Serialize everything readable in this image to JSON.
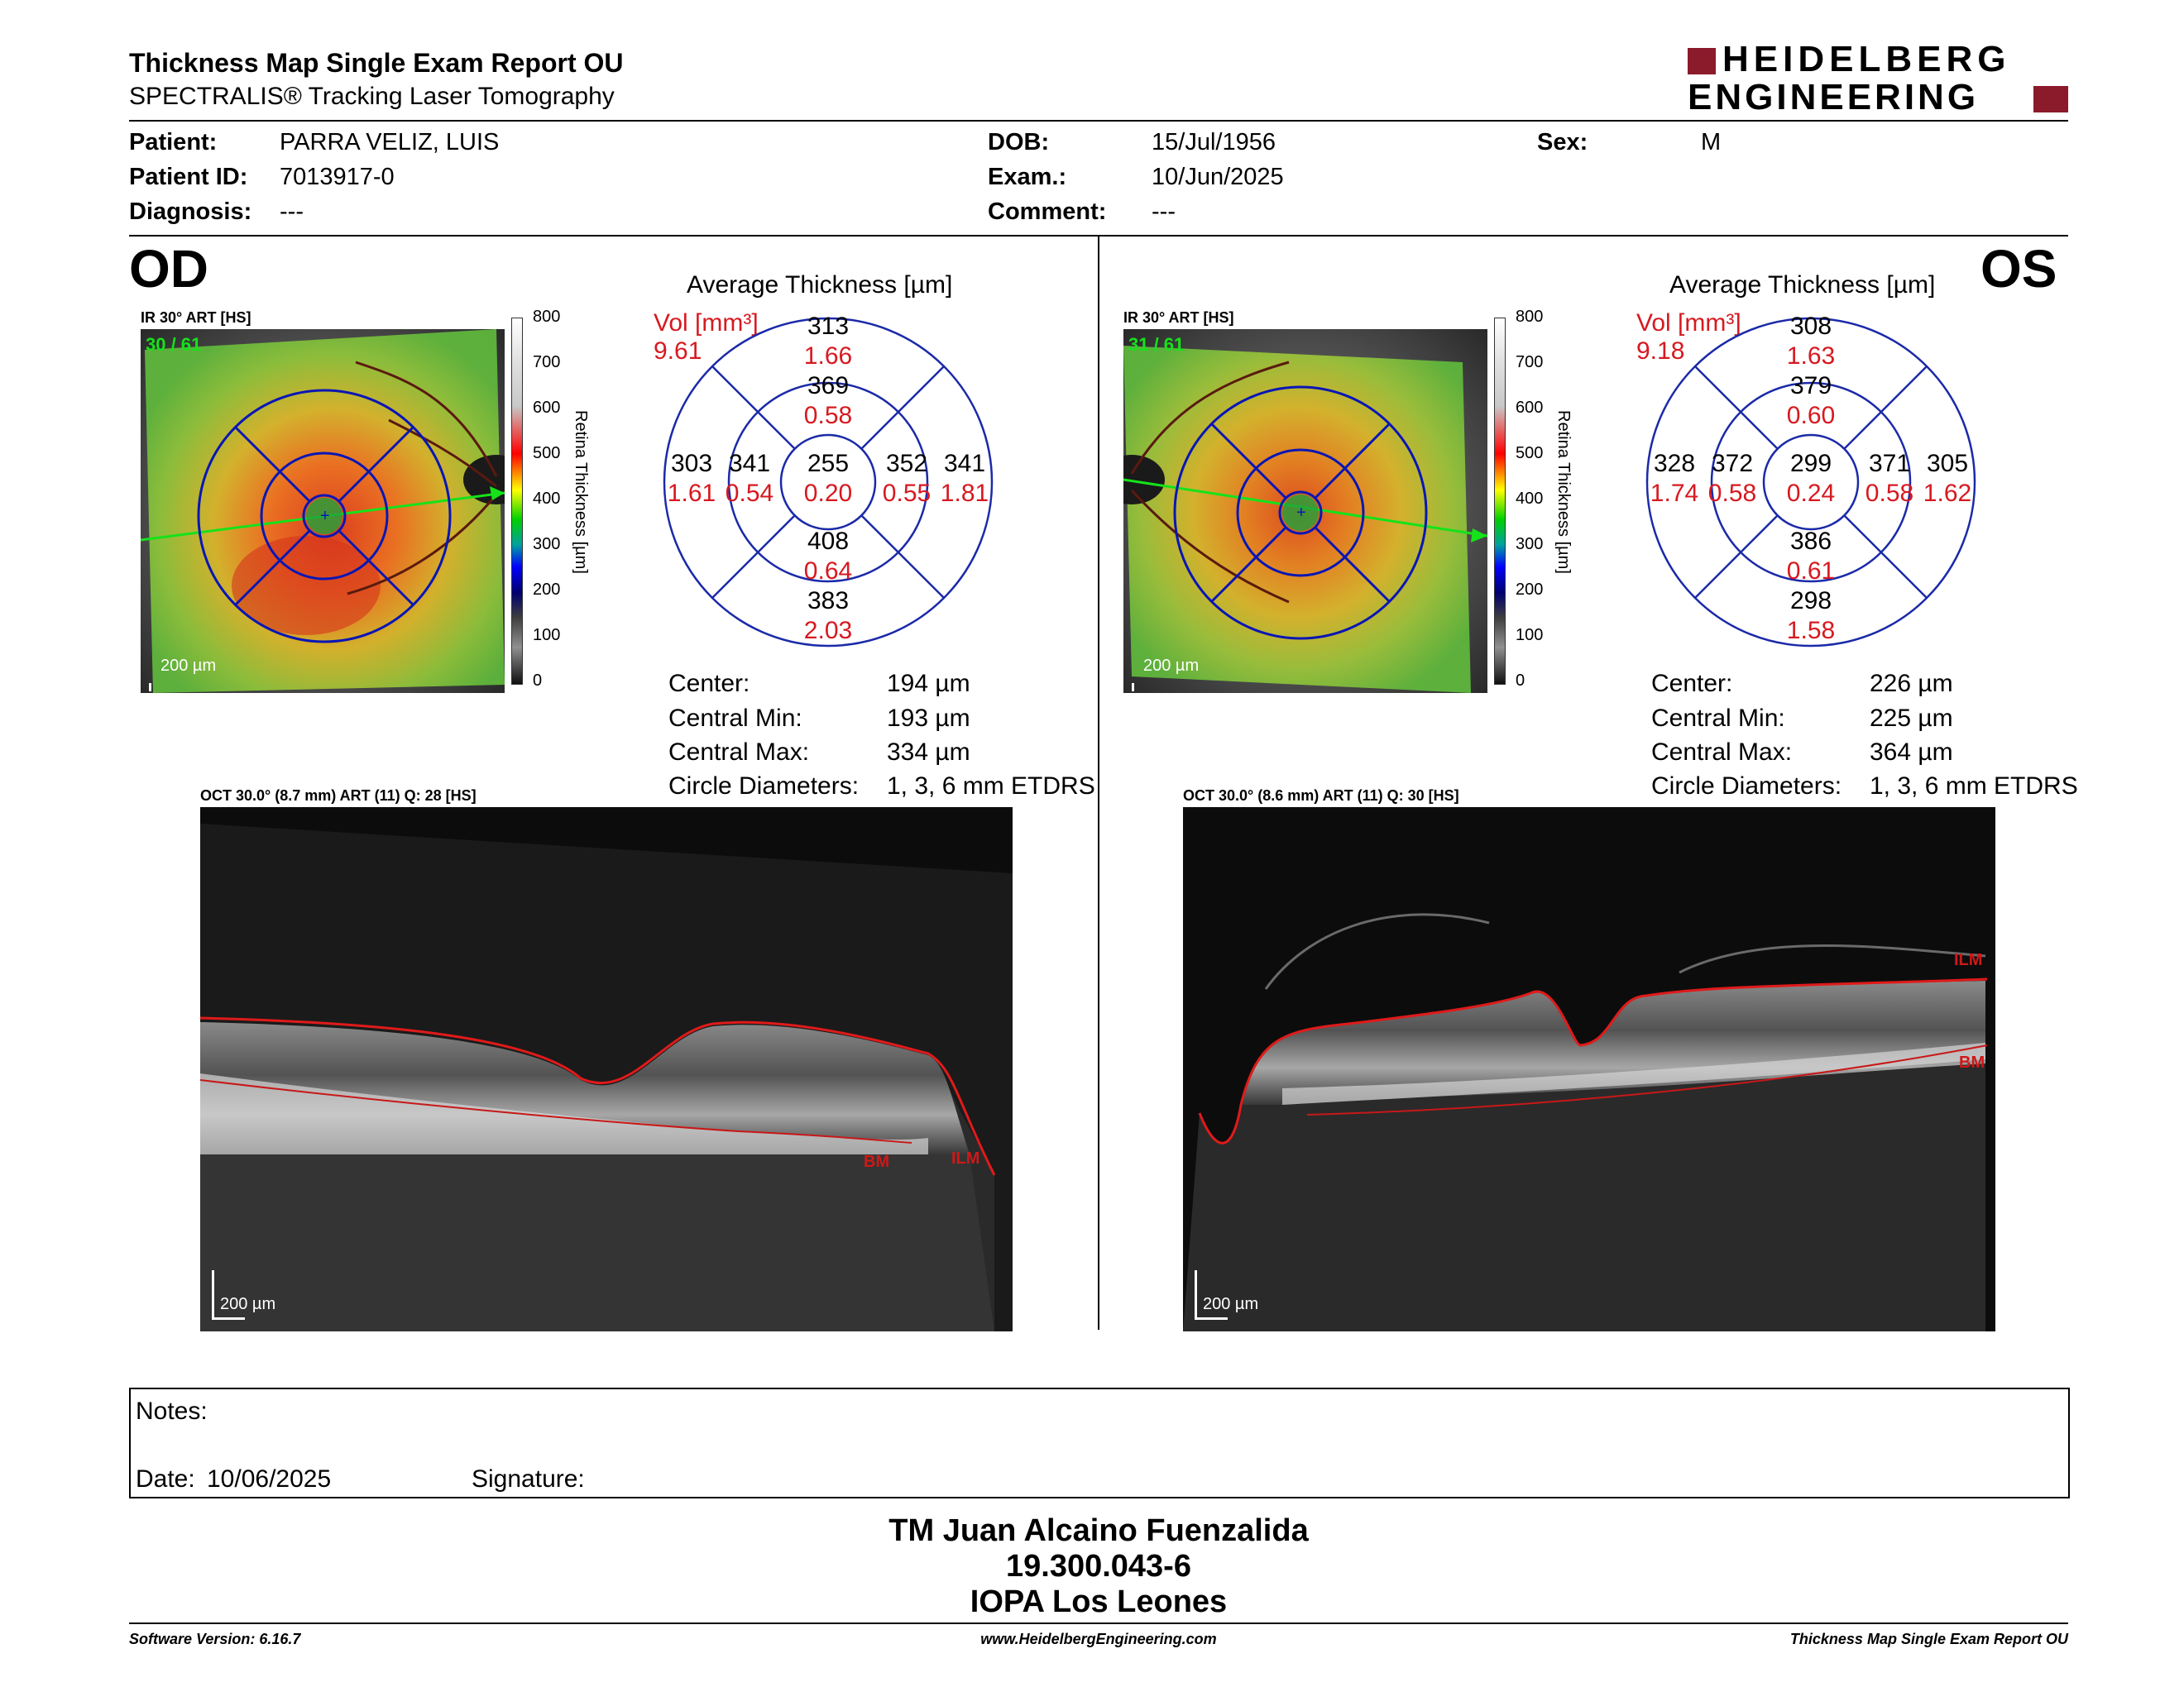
{
  "header": {
    "title": "Thickness Map Single Exam Report OU",
    "subtitle": "SPECTRALIS® Tracking Laser Tomography",
    "brand_line1": "HEIDELBERG",
    "brand_line2": "ENGINEERING",
    "brand_color": "#8b1a2b"
  },
  "patient": {
    "patient_label": "Patient:",
    "patient_value": "PARRA VELIZ, LUIS",
    "id_label": "Patient ID:",
    "id_value": "7013917-0",
    "diag_label": "Diagnosis:",
    "diag_value": "---",
    "dob_label": "DOB:",
    "dob_value": "15/Jul/1956",
    "exam_label": "Exam.:",
    "exam_value": "10/Jun/2025",
    "comment_label": "Comment:",
    "comment_value": "---",
    "sex_label": "Sex:",
    "sex_value": "M"
  },
  "scale": {
    "ticks": [
      "800",
      "700",
      "600",
      "500",
      "400",
      "300",
      "200",
      "100",
      "0"
    ],
    "title": "Retina Thickness [µm]"
  },
  "od": {
    "eye": "OD",
    "ir_caption": "IR 30° ART [HS]",
    "ir_quality": "30 / 61",
    "scalebar": "200 µm",
    "avg_title": "Average Thickness [µm]",
    "vol_label": "Vol [mm³]",
    "vol_total": "9.61",
    "grid": {
      "outer_top": "313",
      "outer_top_vol": "1.66",
      "inner_top": "369",
      "inner_top_vol": "0.58",
      "outer_left": "303",
      "outer_left_vol": "1.61",
      "inner_left": "341",
      "inner_left_vol": "0.54",
      "center": "255",
      "center_vol": "0.20",
      "inner_right": "352",
      "inner_right_vol": "0.55",
      "outer_right": "341",
      "outer_right_vol": "1.81",
      "inner_bottom": "408",
      "inner_bottom_vol": "0.64",
      "outer_bottom": "383",
      "outer_bottom_vol": "2.03"
    },
    "stats": {
      "center_label": "Center:",
      "center_value": "194 µm",
      "min_label": "Central Min:",
      "min_value": "193 µm",
      "max_label": "Central Max:",
      "max_value": "334 µm",
      "circ_label": "Circle Diameters:",
      "circ_value": "1, 3, 6 mm ETDRS"
    },
    "oct_caption": "OCT 30.0° (8.7 mm) ART (11) Q: 28 [HS]",
    "oct_scalebar": "200 µm",
    "ilm": "ILM",
    "bm": "BM"
  },
  "os": {
    "eye": "OS",
    "ir_caption": "IR 30° ART [HS]",
    "ir_quality": "31 / 61",
    "scalebar": "200 µm",
    "avg_title": "Average Thickness [µm]",
    "vol_label": "Vol [mm³]",
    "vol_total": "9.18",
    "grid": {
      "outer_top": "308",
      "outer_top_vol": "1.63",
      "inner_top": "379",
      "inner_top_vol": "0.60",
      "outer_left": "328",
      "outer_left_vol": "1.74",
      "inner_left": "372",
      "inner_left_vol": "0.58",
      "center": "299",
      "center_vol": "0.24",
      "inner_right": "371",
      "inner_right_vol": "0.58",
      "outer_right": "305",
      "outer_right_vol": "1.62",
      "inner_bottom": "386",
      "inner_bottom_vol": "0.61",
      "outer_bottom": "298",
      "outer_bottom_vol": "1.58"
    },
    "stats": {
      "center_label": "Center:",
      "center_value": "226 µm",
      "min_label": "Central Min:",
      "min_value": "225 µm",
      "max_label": "Central Max:",
      "max_value": "364 µm",
      "circ_label": "Circle Diameters:",
      "circ_value": "1, 3, 6 mm ETDRS"
    },
    "oct_caption": "OCT 30.0° (8.6 mm) ART (11) Q: 30 [HS]",
    "oct_scalebar": "200 µm",
    "ilm": "ILM",
    "bm": "BM"
  },
  "notes": {
    "notes_label": "Notes:",
    "date_label": "Date:",
    "date_value": "10/06/2025",
    "signature_label": "Signature:"
  },
  "signatory": {
    "name": "TM Juan Alcaino Fuenzalida",
    "id": "19.300.043-6",
    "org": "IOPA Los Leones"
  },
  "footer": {
    "version": "Software Version: 6.16.7",
    "url": "www.HeidelbergEngineering.com",
    "report": "Thickness Map Single Exam Report OU"
  }
}
